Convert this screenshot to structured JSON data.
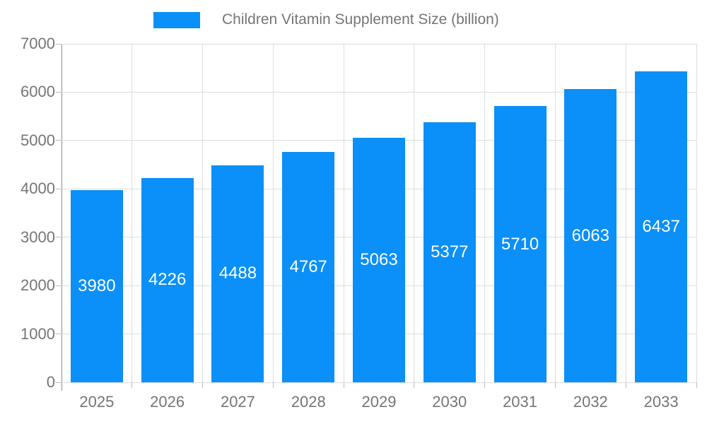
{
  "chart_data": {
    "type": "bar",
    "title": "",
    "legend_label": "Children Vitamin Supplement Size (billion)",
    "categories": [
      "2025",
      "2026",
      "2027",
      "2028",
      "2029",
      "2030",
      "2031",
      "2032",
      "2033"
    ],
    "values": [
      3980,
      4226,
      4488,
      4767,
      5063,
      5377,
      5710,
      6063,
      6437
    ],
    "xlabel": "",
    "ylabel": "",
    "ylim": [
      0,
      7000
    ],
    "ytick_step": 1000,
    "grid": "on",
    "legend_position": "top-center",
    "bar_color": "#0a90f8",
    "value_label_color": "#ffffff",
    "axis_text_color": "#757575"
  }
}
